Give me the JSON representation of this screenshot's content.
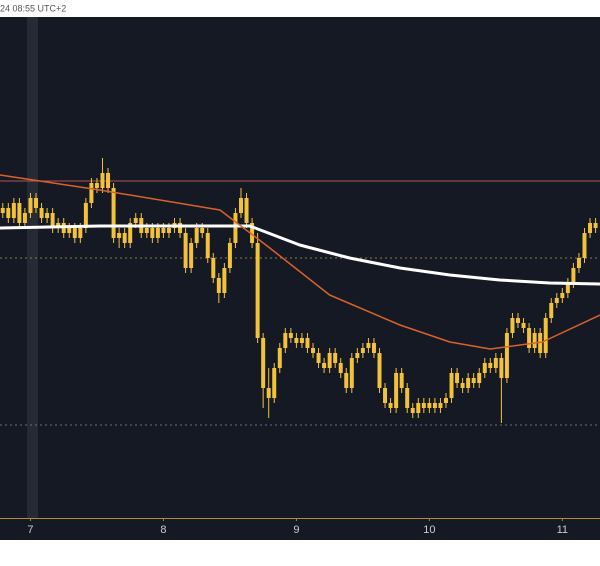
{
  "chart_data": {
    "type": "candlestick",
    "title": "24 08:55 UTC+2",
    "color": "#f2c33a",
    "xlim": [
      -0.5,
      107.8
    ],
    "xticks": [
      {
        "value": 5,
        "label": "7"
      },
      {
        "value": 29,
        "label": "8"
      },
      {
        "value": 53,
        "label": "9"
      },
      {
        "value": 77,
        "label": "10"
      },
      {
        "value": 101,
        "label": "11"
      }
    ],
    "ylim": [
      0,
      100
    ],
    "open": [
      61,
      62,
      60,
      63,
      59,
      61,
      64,
      62,
      60,
      61,
      58,
      59,
      57,
      58,
      56,
      58,
      63,
      67,
      66,
      69,
      66,
      56,
      57,
      55,
      59,
      60,
      57,
      58,
      56,
      58,
      57,
      58,
      59,
      57,
      50,
      55,
      58,
      57,
      52,
      48,
      45,
      50,
      55,
      61,
      64,
      59,
      55,
      36,
      26,
      24,
      30,
      34,
      37,
      36,
      35,
      36,
      34,
      33,
      31,
      30,
      33,
      31,
      29,
      26,
      32,
      33,
      34,
      35,
      33,
      26,
      23,
      22,
      29,
      26,
      22,
      21,
      23,
      22,
      23,
      22,
      23,
      24,
      29,
      27,
      26,
      28,
      27,
      29,
      31,
      30,
      32,
      28,
      37,
      40,
      39,
      38,
      34,
      37,
      33,
      40,
      43,
      44,
      45,
      47,
      50,
      52,
      57,
      59
    ],
    "high": [
      63,
      63,
      64,
      64,
      62,
      65,
      65,
      63,
      62,
      62,
      60,
      60,
      59,
      59,
      59,
      64,
      68,
      68,
      72,
      70,
      67,
      58,
      58,
      60,
      61,
      61,
      59,
      59,
      59,
      59,
      59,
      60,
      60,
      58,
      56,
      59,
      59,
      58,
      53,
      49,
      51,
      56,
      62,
      66,
      65,
      60,
      57,
      37,
      30,
      31,
      35,
      38,
      38,
      37,
      37,
      37,
      35,
      34,
      32,
      34,
      34,
      32,
      30,
      33,
      34,
      35,
      36,
      36,
      34,
      27,
      24,
      30,
      30,
      27,
      23,
      24,
      24,
      24,
      24,
      24,
      25,
      30,
      30,
      28,
      29,
      29,
      30,
      32,
      32,
      33,
      33,
      38,
      41,
      41,
      40,
      39,
      38,
      38,
      41,
      44,
      45,
      46,
      48,
      51,
      53,
      58,
      60,
      60
    ],
    "low": [
      60,
      59,
      59,
      58,
      58,
      60,
      61,
      59,
      59,
      57,
      57,
      56,
      56,
      55,
      55,
      57,
      62,
      65,
      65,
      65,
      55,
      54,
      54,
      54,
      58,
      56,
      56,
      55,
      55,
      56,
      56,
      57,
      56,
      49,
      49,
      54,
      56,
      51,
      47,
      43,
      44,
      49,
      54,
      60,
      58,
      54,
      35,
      22,
      20,
      23,
      29,
      33,
      35,
      34,
      34,
      33,
      32,
      30,
      29,
      29,
      30,
      28,
      25,
      25,
      31,
      32,
      33,
      32,
      25,
      22,
      21,
      21,
      25,
      21,
      20,
      20,
      21,
      21,
      21,
      21,
      22,
      23,
      26,
      25,
      25,
      26,
      26,
      28,
      29,
      29,
      19,
      27,
      36,
      38,
      37,
      33,
      33,
      32,
      32,
      39,
      42,
      43,
      44,
      46,
      49,
      51,
      56,
      57
    ],
    "close": [
      62,
      60,
      63,
      59,
      61,
      64,
      62,
      60,
      61,
      58,
      59,
      57,
      58,
      56,
      58,
      63,
      67,
      66,
      69,
      66,
      56,
      57,
      55,
      59,
      60,
      57,
      58,
      56,
      58,
      57,
      58,
      59,
      57,
      50,
      55,
      58,
      57,
      52,
      48,
      45,
      50,
      55,
      61,
      64,
      59,
      55,
      36,
      26,
      24,
      30,
      34,
      37,
      36,
      35,
      36,
      34,
      33,
      31,
      30,
      33,
      31,
      29,
      26,
      32,
      33,
      34,
      35,
      33,
      26,
      23,
      22,
      29,
      26,
      22,
      21,
      23,
      22,
      23,
      22,
      23,
      24,
      29,
      27,
      26,
      28,
      27,
      29,
      31,
      30,
      32,
      28,
      37,
      40,
      39,
      38,
      34,
      37,
      33,
      40,
      43,
      44,
      45,
      47,
      50,
      52,
      57,
      59,
      58
    ],
    "lines": [
      {
        "color": "#ffffff",
        "x": [
          -0.5,
          17.5,
          44.6,
          53.6,
          62.6,
          71.7,
          80.7,
          89.7,
          98.7,
          107.8
        ],
        "values": [
          58,
          58.4,
          58.4,
          54.6,
          52,
          50,
          48.6,
          47.6,
          47,
          46.8
        ]
      },
      {
        "color": "#d9622b",
        "x": [
          -0.5,
          17.5,
          39.2,
          48.2,
          59,
          71.7,
          80.7,
          88,
          97.4,
          107.8
        ],
        "values": [
          68.6,
          65.6,
          61.6,
          54,
          44.6,
          38.6,
          35.2,
          33.8,
          35.2,
          40.6
        ]
      }
    ],
    "hlines": [
      {
        "value": 67.4,
        "color": "#b0534f",
        "dashed": false
      },
      {
        "value": 52,
        "color": "#8a7a4a",
        "dashed": true
      },
      {
        "value": 18.6,
        "color": "#6a6e78",
        "dashed": true
      }
    ]
  }
}
